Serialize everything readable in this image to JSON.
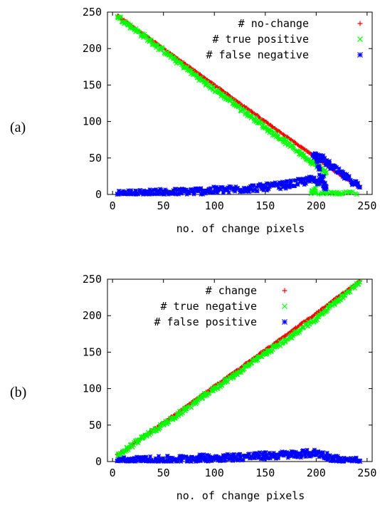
{
  "figure": {
    "panels": [
      {
        "label": "(a)",
        "chart_data": {
          "type": "scatter",
          "title": "",
          "xlabel": "no. of change pixels",
          "ylabel": "",
          "xlim": [
            -5,
            255
          ],
          "ylim": [
            0,
            250
          ],
          "xticks": [
            "0",
            "50",
            "100",
            "150",
            "200",
            "250"
          ],
          "yticks": [
            "0",
            "50",
            "100",
            "150",
            "200",
            "250"
          ],
          "grid": false,
          "legend_position": "top-right",
          "series": [
            {
              "name": "# no-change",
              "marker": "+",
              "color": "#ff0000",
              "points": [
                [
                  5,
                  245
                ],
                [
                  30,
                  220
                ],
                [
                  60,
                  190
                ],
                [
                  90,
                  160
                ],
                [
                  120,
                  130
                ],
                [
                  150,
                  100
                ],
                [
                  180,
                  70
                ],
                [
                  200,
                  50
                ],
                [
                  220,
                  30
                ],
                [
                  243,
                  10
                ]
              ]
            },
            {
              "name": "# true positive",
              "marker": "x",
              "color": "#00ff00",
              "points": [
                [
                  5,
                  244
                ],
                [
                  30,
                  218
                ],
                [
                  60,
                  186
                ],
                [
                  90,
                  154
                ],
                [
                  120,
                  124
                ],
                [
                  150,
                  92
                ],
                [
                  170,
                  72
                ],
                [
                  185,
                  56
                ],
                [
                  195,
                  45
                ],
                [
                  205,
                  35
                ],
                [
                  210,
                  30
                ],
                [
                  195,
                  1
                ],
                [
                  210,
                  1
                ],
                [
                  225,
                  1
                ],
                [
                  240,
                  0
                ]
              ]
            },
            {
              "name": "# false negative",
              "marker": "*",
              "color": "#0000ff",
              "points": [
                [
                  5,
                  0
                ],
                [
                  30,
                  2
                ],
                [
                  60,
                  3
                ],
                [
                  90,
                  5
                ],
                [
                  120,
                  7
                ],
                [
                  150,
                  10
                ],
                [
                  170,
                  13
                ],
                [
                  185,
                  17
                ],
                [
                  195,
                  20
                ],
                [
                  205,
                  18
                ],
                [
                  210,
                  10
                ],
                [
                  197,
                  55
                ],
                [
                  205,
                  50
                ],
                [
                  215,
                  38
                ],
                [
                  225,
                  28
                ],
                [
                  235,
                  18
                ],
                [
                  243,
                  10
                ]
              ]
            }
          ]
        }
      },
      {
        "label": "(b)",
        "chart_data": {
          "type": "scatter",
          "title": "",
          "xlabel": "no. of change pixels",
          "ylabel": "",
          "xlim": [
            -5,
            255
          ],
          "ylim": [
            0,
            250
          ],
          "xticks": [
            "0",
            "50",
            "100",
            "150",
            "200",
            "250"
          ],
          "yticks": [
            "0",
            "50",
            "100",
            "150",
            "200",
            "250"
          ],
          "grid": false,
          "legend_position": "top-left",
          "series": [
            {
              "name": "# change",
              "marker": "+",
              "color": "#ff0000",
              "points": [
                [
                  5,
                  9
                ],
                [
                  30,
                  34
                ],
                [
                  60,
                  63
                ],
                [
                  90,
                  93
                ],
                [
                  120,
                  123
                ],
                [
                  150,
                  153
                ],
                [
                  180,
                  183
                ],
                [
                  200,
                  203
                ],
                [
                  220,
                  224
                ],
                [
                  243,
                  247
                ]
              ]
            },
            {
              "name": "# true negative",
              "marker": "x",
              "color": "#00ff00",
              "points": [
                [
                  5,
                  8
                ],
                [
                  30,
                  33
                ],
                [
                  60,
                  60
                ],
                [
                  90,
                  90
                ],
                [
                  120,
                  119
                ],
                [
                  150,
                  148
                ],
                [
                  180,
                  176
                ],
                [
                  200,
                  196
                ],
                [
                  220,
                  220
                ],
                [
                  243,
                  246
                ]
              ]
            },
            {
              "name": "# false positive",
              "marker": "*",
              "color": "#0000ff",
              "points": [
                [
                  5,
                  1
                ],
                [
                  30,
                  2
                ],
                [
                  60,
                  3
                ],
                [
                  90,
                  5
                ],
                [
                  120,
                  6
                ],
                [
                  150,
                  8
                ],
                [
                  180,
                  10
                ],
                [
                  200,
                  12
                ],
                [
                  210,
                  8
                ],
                [
                  225,
                  1
                ],
                [
                  243,
                  0
                ]
              ]
            }
          ]
        }
      }
    ]
  }
}
